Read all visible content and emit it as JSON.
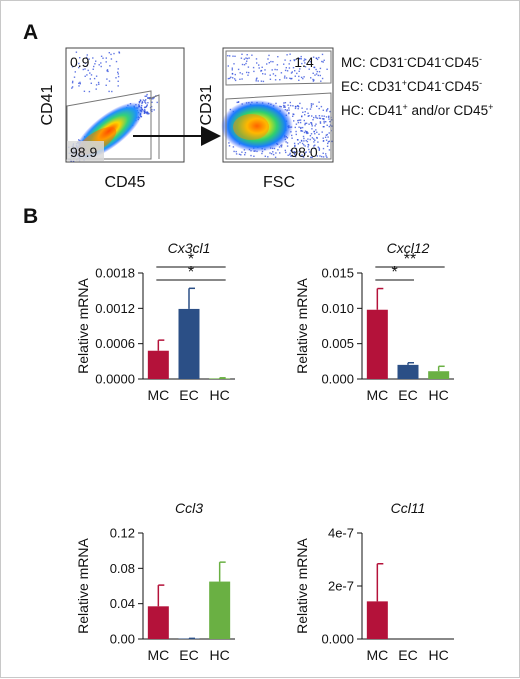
{
  "panel_a": {
    "letter": "A",
    "plot1": {
      "xlabel": "CD45",
      "ylabel": "CD41",
      "gate_top_left": "0.9",
      "gate_bottom_left": "98.9"
    },
    "plot2": {
      "xlabel": "FSC",
      "ylabel": "CD31",
      "gate_top_right": "1.4",
      "gate_bottom_right": "98.0"
    },
    "legend": [
      {
        "prefix": "MC: ",
        "parts": [
          [
            "CD31",
            "-"
          ],
          [
            "CD41",
            "-"
          ],
          [
            "CD45",
            "-"
          ]
        ]
      },
      {
        "prefix": "EC: ",
        "parts": [
          [
            "CD31",
            "+"
          ],
          [
            "CD41",
            "-"
          ],
          [
            "CD45",
            "-"
          ]
        ]
      },
      {
        "prefix": "HC: ",
        "parts": [
          [
            "CD41",
            "+"
          ],
          [
            " and/or CD45",
            "+"
          ]
        ]
      }
    ]
  },
  "panel_b": {
    "letter": "B"
  },
  "colors": {
    "MC": "#b4123a",
    "EC": "#2b4f86",
    "HC": "#6ab043"
  },
  "chart_data": [
    {
      "type": "bar",
      "title": "Cx3cl1",
      "ylabel": "Relative mRNA",
      "categories": [
        "MC",
        "EC",
        "HC"
      ],
      "values": [
        0.00048,
        0.00119,
        1e-05
      ],
      "errors": [
        0.00018,
        0.00035,
        1e-05
      ],
      "ylim": [
        0,
        0.0018
      ],
      "yticks": [
        "0.0000",
        "0.0006",
        "0.0012",
        "0.0018"
      ],
      "ytick_values": [
        0,
        0.0006,
        0.0012,
        0.0018
      ],
      "significance": [
        {
          "from": "MC",
          "to": "HC",
          "label": "*"
        },
        {
          "from": "MC",
          "to": "HC",
          "label": "*"
        }
      ]
    },
    {
      "type": "bar",
      "title": "Cxcl12",
      "ylabel": "Relative mRNA",
      "categories": [
        "MC",
        "EC",
        "HC"
      ],
      "values": [
        0.0098,
        0.002,
        0.0011
      ],
      "errors": [
        0.003,
        0.0003,
        0.0007
      ],
      "ylim": [
        0,
        0.015
      ],
      "yticks": [
        "0.000",
        "0.005",
        "0.010",
        "0.015"
      ],
      "ytick_values": [
        0,
        0.005,
        0.01,
        0.015
      ],
      "significance": [
        {
          "from": "MC",
          "to": "HC",
          "label": "**"
        },
        {
          "from": "MC",
          "to": "EC",
          "label": "*"
        }
      ]
    },
    {
      "type": "bar",
      "title": "Ccl3",
      "ylabel": "Relative mRNA",
      "categories": [
        "MC",
        "EC",
        "HC"
      ],
      "values": [
        0.037,
        0.0005,
        0.065
      ],
      "errors": [
        0.024,
        0.0002,
        0.022
      ],
      "ylim": [
        0,
        0.12
      ],
      "yticks": [
        "0.00",
        "0.04",
        "0.08",
        "0.12"
      ],
      "ytick_values": [
        0,
        0.04,
        0.08,
        0.12
      ],
      "significance": []
    },
    {
      "type": "bar",
      "title": "Ccl11",
      "ylabel": "Relative mRNA",
      "categories": [
        "MC",
        "EC",
        "HC"
      ],
      "values": [
        1.42e-07,
        0,
        0
      ],
      "errors": [
        1.42e-07,
        0,
        0
      ],
      "ylim": [
        0,
        4e-07
      ],
      "yticks": [
        "0.000",
        "2e-7",
        "4e-7"
      ],
      "ytick_values": [
        0,
        2e-07,
        4e-07
      ],
      "significance": []
    }
  ]
}
